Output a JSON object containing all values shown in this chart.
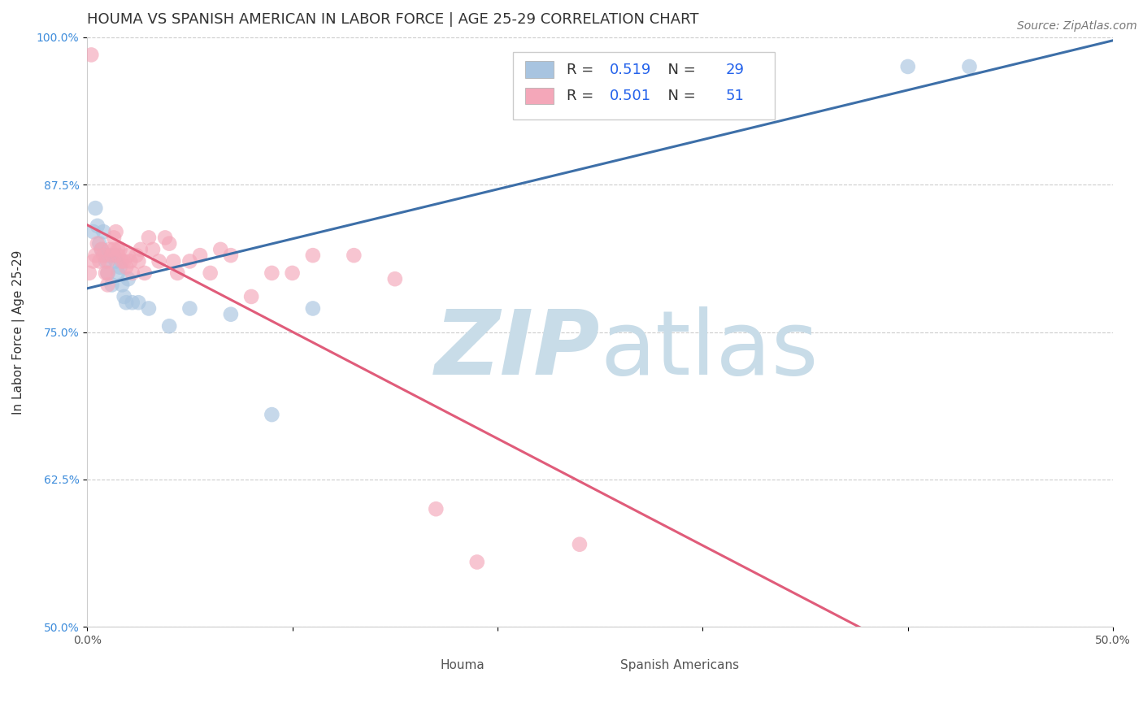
{
  "title": "HOUMA VS SPANISH AMERICAN IN LABOR FORCE | AGE 25-29 CORRELATION CHART",
  "source_text": "Source: ZipAtlas.com",
  "ylabel": "In Labor Force | Age 25-29",
  "xlim": [
    0.0,
    0.5
  ],
  "ylim": [
    0.5,
    1.0
  ],
  "xticks": [
    0.0,
    0.1,
    0.2,
    0.3,
    0.4,
    0.5
  ],
  "xticklabels": [
    "0.0%",
    "",
    "",
    "",
    "",
    "50.0%"
  ],
  "yticks": [
    0.5,
    0.625,
    0.75,
    0.875,
    1.0
  ],
  "yticklabels": [
    "50.0%",
    "62.5%",
    "75.0%",
    "87.5%",
    "100.0%"
  ],
  "houma_color": "#a8c4e0",
  "spanish_color": "#f4a7b9",
  "houma_line_color": "#3d6fa8",
  "spanish_line_color": "#e05c7a",
  "houma_R": 0.519,
  "houma_N": 29,
  "spanish_R": 0.501,
  "spanish_N": 51,
  "watermark_zip_color": "#c8dce8",
  "watermark_atlas_color": "#c8dce8",
  "houma_x": [
    0.003,
    0.004,
    0.005,
    0.006,
    0.007,
    0.008,
    0.009,
    0.01,
    0.01,
    0.012,
    0.013,
    0.014,
    0.015,
    0.016,
    0.017,
    0.018,
    0.019,
    0.02,
    0.022,
    0.025,
    0.03,
    0.04,
    0.05,
    0.07,
    0.09,
    0.11,
    0.33,
    0.4,
    0.43
  ],
  "houma_y": [
    0.835,
    0.855,
    0.84,
    0.825,
    0.82,
    0.835,
    0.81,
    0.815,
    0.8,
    0.79,
    0.815,
    0.81,
    0.8,
    0.805,
    0.79,
    0.78,
    0.775,
    0.795,
    0.775,
    0.775,
    0.77,
    0.755,
    0.77,
    0.765,
    0.68,
    0.77,
    0.975,
    0.975,
    0.975
  ],
  "spanish_x": [
    0.001,
    0.002,
    0.003,
    0.004,
    0.005,
    0.006,
    0.007,
    0.008,
    0.009,
    0.01,
    0.01,
    0.01,
    0.011,
    0.012,
    0.013,
    0.013,
    0.014,
    0.015,
    0.015,
    0.016,
    0.017,
    0.018,
    0.019,
    0.02,
    0.021,
    0.022,
    0.024,
    0.025,
    0.026,
    0.028,
    0.03,
    0.032,
    0.035,
    0.038,
    0.04,
    0.042,
    0.044,
    0.05,
    0.055,
    0.06,
    0.065,
    0.07,
    0.08,
    0.09,
    0.1,
    0.11,
    0.13,
    0.15,
    0.17,
    0.19,
    0.24
  ],
  "spanish_y": [
    0.8,
    0.985,
    0.81,
    0.815,
    0.825,
    0.81,
    0.82,
    0.815,
    0.8,
    0.81,
    0.8,
    0.79,
    0.82,
    0.815,
    0.83,
    0.82,
    0.835,
    0.815,
    0.82,
    0.82,
    0.81,
    0.81,
    0.805,
    0.815,
    0.81,
    0.8,
    0.815,
    0.81,
    0.82,
    0.8,
    0.83,
    0.82,
    0.81,
    0.83,
    0.825,
    0.81,
    0.8,
    0.81,
    0.815,
    0.8,
    0.82,
    0.815,
    0.78,
    0.8,
    0.8,
    0.815,
    0.815,
    0.795,
    0.6,
    0.555,
    0.57
  ],
  "title_fontsize": 13,
  "axis_label_fontsize": 11,
  "tick_fontsize": 10,
  "legend_fontsize": 13,
  "source_fontsize": 10
}
